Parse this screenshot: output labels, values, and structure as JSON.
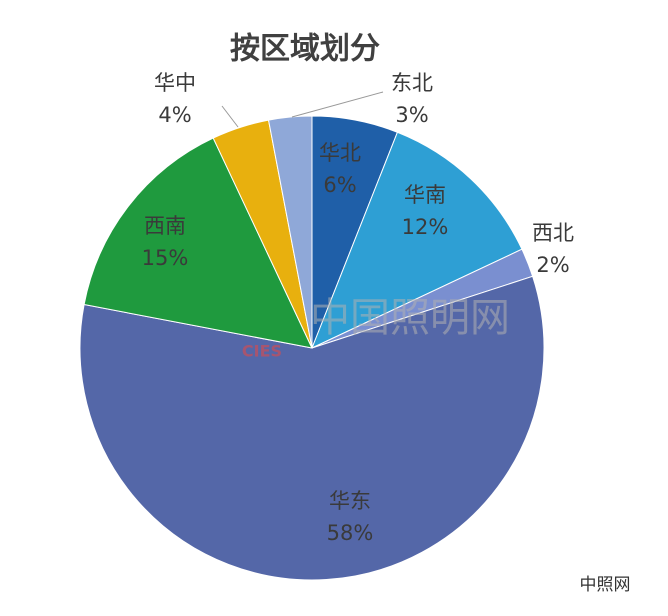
{
  "chart_data": {
    "type": "pie",
    "title": "按区域划分",
    "categories": [
      "华北",
      "华南",
      "西北",
      "华东",
      "西南",
      "华中",
      "东北"
    ],
    "values": [
      6,
      12,
      2,
      58,
      15,
      4,
      3
    ],
    "value_labels": [
      "6%",
      "12%",
      "2%",
      "58%",
      "15%",
      "4%",
      "3%"
    ],
    "colors": [
      "#1f5fa8",
      "#2e9fd4",
      "#7a8fd0",
      "#5467a8",
      "#1f9a3e",
      "#e8b00e",
      "#8fa8d8"
    ]
  },
  "watermark": {
    "site": "中国照明网",
    "logo": "CIES",
    "footer": "中照网"
  }
}
